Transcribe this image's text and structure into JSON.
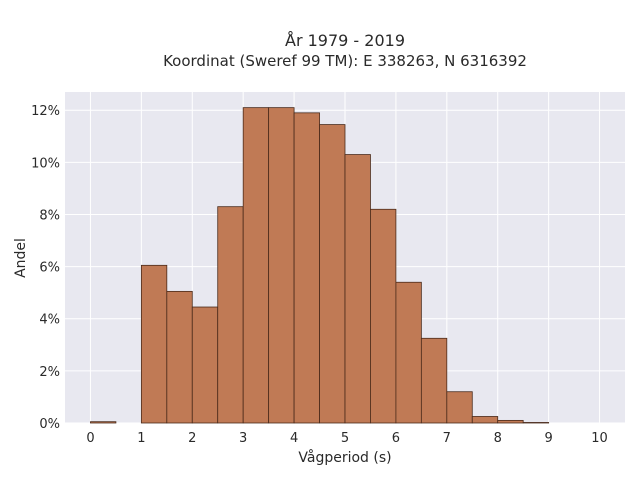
{
  "chart_data": {
    "type": "bar",
    "title": "År 1979 - 2019",
    "subtitle": "Koordinat (Sweref 99 TM): E 338263, N 6316392",
    "xlabel": "Vågperiod (s)",
    "ylabel": "Andel",
    "xlim": [
      -0.5,
      10.5
    ],
    "ylim": [
      0,
      12.7
    ],
    "x_ticks": [
      0,
      1,
      2,
      3,
      4,
      5,
      6,
      7,
      8,
      9,
      10
    ],
    "y_ticks": [
      0,
      2,
      4,
      6,
      8,
      10,
      12
    ],
    "y_tick_labels": [
      "0%",
      "2%",
      "4%",
      "6%",
      "8%",
      "10%",
      "12%"
    ],
    "bin_width": 0.5,
    "bin_starts": [
      0,
      0.5,
      1,
      1.5,
      2,
      2.5,
      3,
      3.5,
      4,
      4.5,
      5,
      5.5,
      6,
      6.5,
      7,
      7.5,
      8,
      8.5,
      9,
      9.5
    ],
    "values": [
      0.05,
      0,
      6.05,
      5.05,
      4.45,
      8.3,
      12.1,
      12.1,
      11.9,
      11.45,
      10.3,
      8.2,
      5.4,
      3.25,
      1.2,
      0.25,
      0.1,
      0.02,
      0,
      0
    ],
    "grid": true,
    "colors": {
      "bar_fill": "#c07a55",
      "bar_stroke": "#4a2a1a",
      "plot_background": "#e8e8f0",
      "grid": "#ffffff"
    }
  }
}
